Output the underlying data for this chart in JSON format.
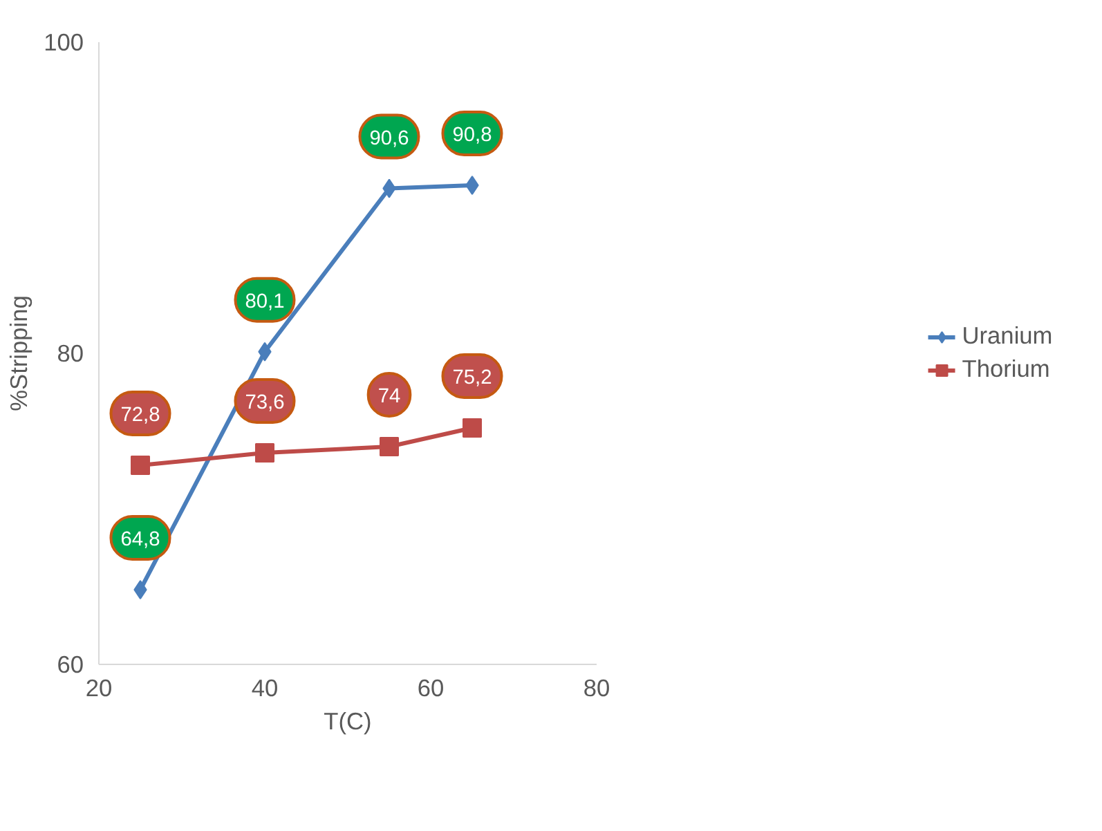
{
  "chart_data": {
    "type": "line",
    "xlabel": "T(C)",
    "ylabel": "%Stripping",
    "x": [
      25,
      40,
      55,
      65
    ],
    "series": [
      {
        "name": "Uranium",
        "color": "#4a7ebb",
        "marker": "diamond",
        "values": [
          64.8,
          80.1,
          90.6,
          90.8
        ],
        "value_labels": [
          "64,8",
          "80,1",
          "90,6",
          "90,8"
        ]
      },
      {
        "name": "Thorium",
        "color": "#be4b48",
        "marker": "square",
        "values": [
          72.8,
          73.6,
          74,
          75.2
        ],
        "value_labels": [
          "72,8",
          "73,6",
          "74",
          "75,2"
        ]
      }
    ],
    "xlim": [
      20,
      80
    ],
    "xticks": [
      20,
      40,
      60,
      80
    ],
    "ylim": [
      60,
      100
    ],
    "yticks": [
      60,
      80,
      100
    ],
    "grid": false,
    "legend": "right"
  }
}
